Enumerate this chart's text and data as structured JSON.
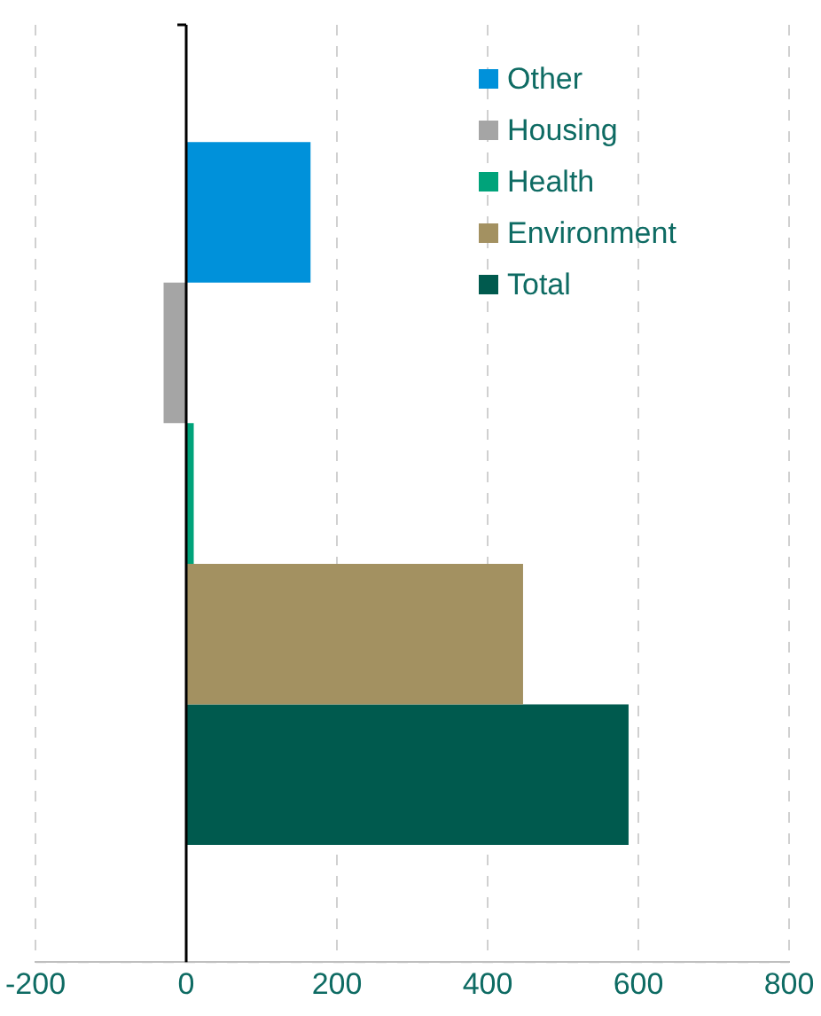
{
  "chart_data": {
    "type": "bar",
    "orientation": "horizontal",
    "categories": [
      null
    ],
    "series": [
      {
        "name": "Other",
        "color": "#0091da",
        "values": [
          165
        ]
      },
      {
        "name": "Housing",
        "color": "#a5a5a5",
        "values": [
          -30
        ]
      },
      {
        "name": "Health",
        "color": "#00a37a",
        "values": [
          10
        ]
      },
      {
        "name": "Environment",
        "color": "#a39161",
        "values": [
          447
        ]
      },
      {
        "name": "Total",
        "color": "#005a4e",
        "values": [
          587
        ]
      }
    ],
    "xlim": [
      -200,
      800
    ],
    "xticks": [
      -200,
      0,
      200,
      400,
      600,
      800
    ],
    "grid": "x",
    "legend": "top right"
  }
}
